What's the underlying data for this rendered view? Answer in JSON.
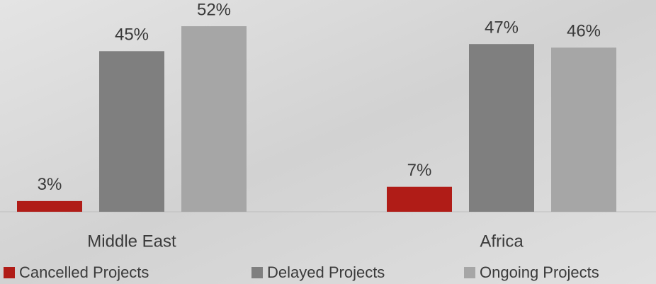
{
  "chart_data": {
    "type": "bar",
    "categories": [
      "Middle East",
      "Africa"
    ],
    "series": [
      {
        "name": "Cancelled Projects",
        "color": "#b01c17",
        "values": [
          3,
          7
        ],
        "value_labels": [
          "3%",
          "7%"
        ]
      },
      {
        "name": "Delayed Projects",
        "color": "#7f7f7f",
        "values": [
          45,
          47
        ],
        "value_labels": [
          "45%",
          "47%"
        ]
      },
      {
        "name": "Ongoing Projects",
        "color": "#a6a6a6",
        "values": [
          52,
          46
        ],
        "value_labels": [
          "52%",
          "46%"
        ]
      }
    ]
  }
}
